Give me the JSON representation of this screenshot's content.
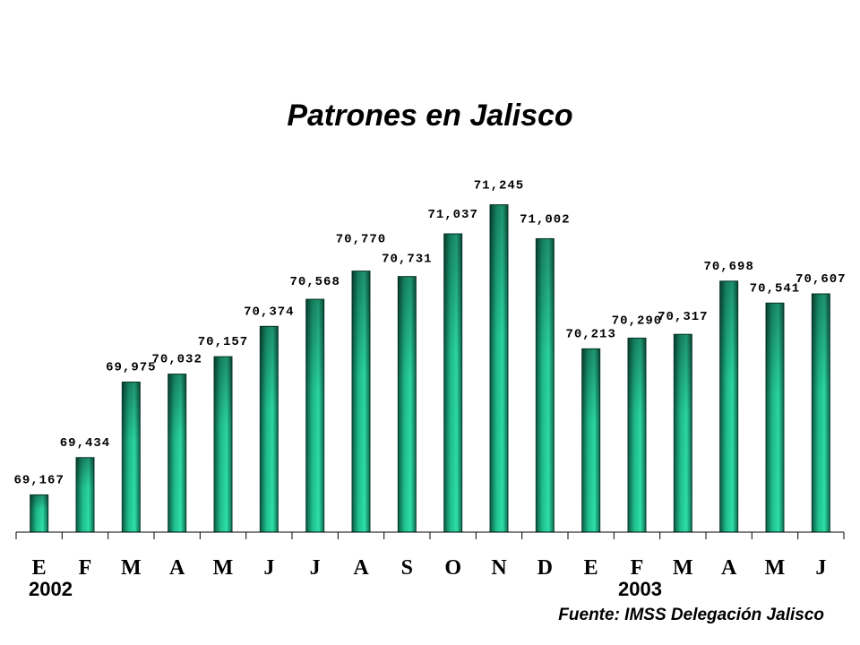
{
  "title": "Patrones en Jalisco",
  "source": "Fuente: IMSS Delegación Jalisco",
  "year_labels": [
    "2002",
    "2003"
  ],
  "colors": {
    "bar_light": "#2ee0a8",
    "bar_dark": "#0a4a38",
    "axis": "#000000"
  },
  "chart_data": {
    "type": "bar",
    "title": "Patrones en Jalisco",
    "categories": [
      "E",
      "F",
      "M",
      "A",
      "M",
      "J",
      "J",
      "A",
      "S",
      "O",
      "N",
      "D",
      "E",
      "F",
      "M",
      "A",
      "M",
      "J"
    ],
    "series": [
      {
        "values": [
          69167,
          69434,
          69975,
          70032,
          70157,
          70374,
          70568,
          70770,
          70731,
          71037,
          71245,
          71002,
          70213,
          70290,
          70317,
          70698,
          70541,
          70607
        ],
        "data_labels": [
          "69,167",
          "69,434",
          "69,975",
          "70,032",
          "70,157",
          "70,374",
          "70,568",
          "70,770",
          "70,731",
          "71,037",
          "71,245",
          "71,002",
          "70,213",
          "70,290",
          "70,317",
          "70,698",
          "70,541",
          "70,607"
        ]
      }
    ],
    "ylim": [
      68900,
      71300
    ],
    "grid": false,
    "legend": "none"
  }
}
